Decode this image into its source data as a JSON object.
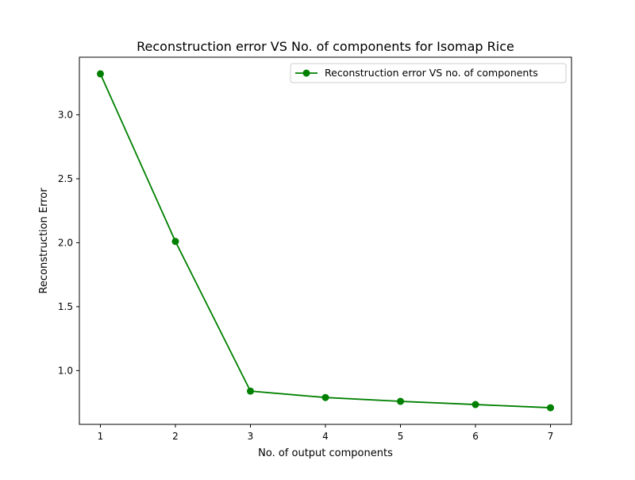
{
  "chart_data": {
    "type": "line",
    "title": "Reconstruction error VS No. of components for Isomap Rice",
    "xlabel": "No. of output components",
    "ylabel": "Reconstruction Error",
    "x": [
      1,
      2,
      3,
      4,
      5,
      6,
      7
    ],
    "series": [
      {
        "name": "Reconstruction error VS no. of components",
        "values": [
          3.32,
          2.01,
          0.84,
          0.79,
          0.76,
          0.735,
          0.71
        ],
        "color": "#008000",
        "marker": "circle"
      }
    ],
    "xlim": [
      0.72,
      7.28
    ],
    "ylim": [
      0.58,
      3.45
    ],
    "xticks": [
      1,
      2,
      3,
      4,
      5,
      6,
      7
    ],
    "xtick_labels": [
      "1",
      "2",
      "3",
      "4",
      "5",
      "6",
      "7"
    ],
    "yticks": [
      1.0,
      1.5,
      2.0,
      2.5,
      3.0
    ],
    "ytick_labels": [
      "1.0",
      "1.5",
      "2.0",
      "2.5",
      "3.0"
    ],
    "grid": false,
    "legend_position": "upper right"
  }
}
